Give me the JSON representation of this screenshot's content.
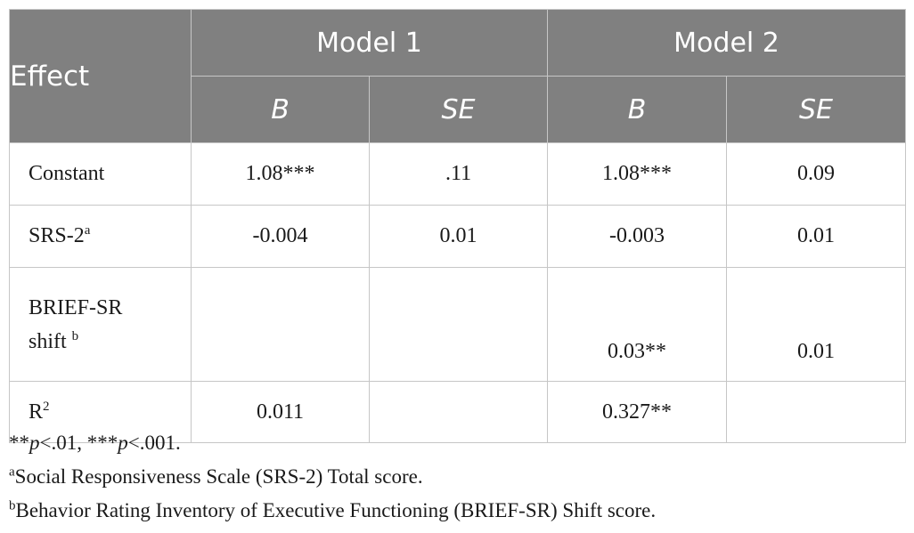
{
  "table": {
    "header": {
      "effect": "Effect",
      "model1": "Model 1",
      "model2": "Model 2",
      "b": "B",
      "se": "SE"
    },
    "rows": [
      {
        "label": "Constant",
        "sup": "",
        "m1_b": "1.08***",
        "m1_se": ".11",
        "m2_b": "1.08***",
        "m2_se": "0.09"
      },
      {
        "label": "SRS-2",
        "sup": "a",
        "m1_b": "-0.004",
        "m1_se": "0.01",
        "m2_b": "-0.003",
        "m2_se": "0.01"
      },
      {
        "label_line1": "BRIEF-SR",
        "label_line2": "shift ",
        "sup": "b",
        "m1_b": "",
        "m1_se": "",
        "m2_b": "0.03**",
        "m2_se": "0.01"
      },
      {
        "label": "R",
        "sup": "2",
        "m1_b": "0.011",
        "m1_se": "",
        "m2_b": "0.327**",
        "m2_se": ""
      }
    ]
  },
  "notes": {
    "sig_1_stars": "**",
    "sig_1_p": "p",
    "sig_1_rest": "<.01, ",
    "sig_2_stars": "***",
    "sig_2_p": "p",
    "sig_2_rest": "<.001.",
    "a_mark": "a",
    "a_text": "Social Responsiveness Scale (SRS-2) Total score.",
    "b_mark": "b",
    "b_text": "Behavior Rating Inventory of Executive Functioning (BRIEF-SR) Shift score."
  }
}
